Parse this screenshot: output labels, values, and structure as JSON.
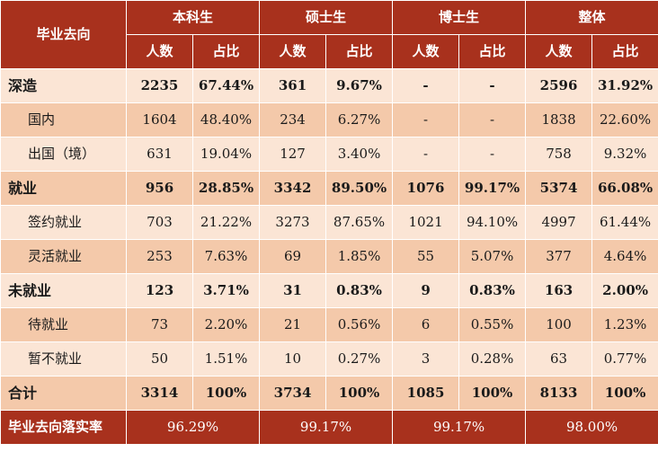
{
  "header": {
    "row_label": "毕业去向",
    "groups": [
      "本科生",
      "硕士生",
      "博士生",
      "整体"
    ],
    "count_label": "人数",
    "ratio_label": "占比"
  },
  "rows": [
    {
      "label": "深造",
      "type": "main",
      "cells": [
        "2235",
        "67.44%",
        "361",
        "9.67%",
        "-",
        "-",
        "2596",
        "31.92%"
      ]
    },
    {
      "label": "国内",
      "type": "sub",
      "cells": [
        "1604",
        "48.40%",
        "234",
        "6.27%",
        "-",
        "-",
        "1838",
        "22.60%"
      ]
    },
    {
      "label": "出国（境）",
      "type": "sub",
      "cells": [
        "631",
        "19.04%",
        "127",
        "3.40%",
        "-",
        "-",
        "758",
        "9.32%"
      ]
    },
    {
      "label": "就业",
      "type": "main",
      "cells": [
        "956",
        "28.85%",
        "3342",
        "89.50%",
        "1076",
        "99.17%",
        "5374",
        "66.08%"
      ]
    },
    {
      "label": "签约就业",
      "type": "sub",
      "cells": [
        "703",
        "21.22%",
        "3273",
        "87.65%",
        "1021",
        "94.10%",
        "4997",
        "61.44%"
      ]
    },
    {
      "label": "灵活就业",
      "type": "sub",
      "cells": [
        "253",
        "7.63%",
        "69",
        "1.85%",
        "55",
        "5.07%",
        "377",
        "4.64%"
      ]
    },
    {
      "label": "未就业",
      "type": "main",
      "cells": [
        "123",
        "3.71%",
        "31",
        "0.83%",
        "9",
        "0.83%",
        "163",
        "2.00%"
      ]
    },
    {
      "label": "待就业",
      "type": "sub",
      "cells": [
        "73",
        "2.20%",
        "21",
        "0.56%",
        "6",
        "0.55%",
        "100",
        "1.23%"
      ]
    },
    {
      "label": "暂不就业",
      "type": "sub",
      "cells": [
        "50",
        "1.51%",
        "10",
        "0.27%",
        "3",
        "0.28%",
        "63",
        "0.77%"
      ]
    },
    {
      "label": "合计",
      "type": "main",
      "cells": [
        "3314",
        "100%",
        "3734",
        "100%",
        "1085",
        "100%",
        "8133",
        "100%"
      ]
    }
  ],
  "footer": {
    "label": "毕业去向落实率",
    "values": [
      "96.29%",
      "99.17%",
      "99.17%",
      "98.00%"
    ]
  },
  "colors": {
    "header": "#a8311d",
    "row_dark": "#f4c9aa",
    "row_light": "#fbe5d5",
    "header_text": "#ffffff"
  }
}
